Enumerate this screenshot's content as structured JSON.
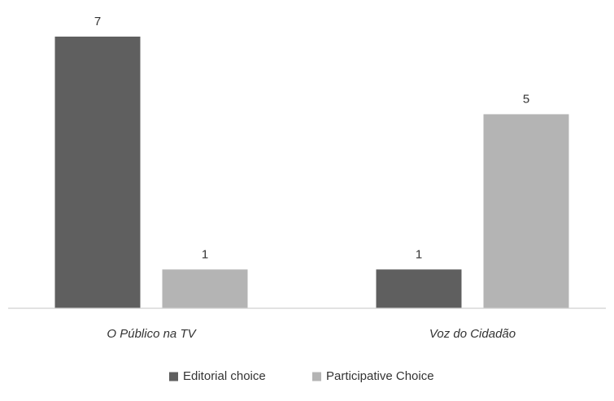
{
  "chart_data": {
    "type": "bar",
    "categories": [
      "O Público na TV",
      "Voz do Cidadão"
    ],
    "series": [
      {
        "name": "Editorial choice",
        "values": [
          7,
          1
        ],
        "color": "#5f5f5f"
      },
      {
        "name": "Participative Choice",
        "values": [
          1,
          5
        ],
        "color": "#b4b4b4"
      }
    ],
    "data_labels": true,
    "ylim": [
      0,
      7.8
    ],
    "grid": false,
    "legend": "bottom-center",
    "category_label_style": "italic"
  }
}
